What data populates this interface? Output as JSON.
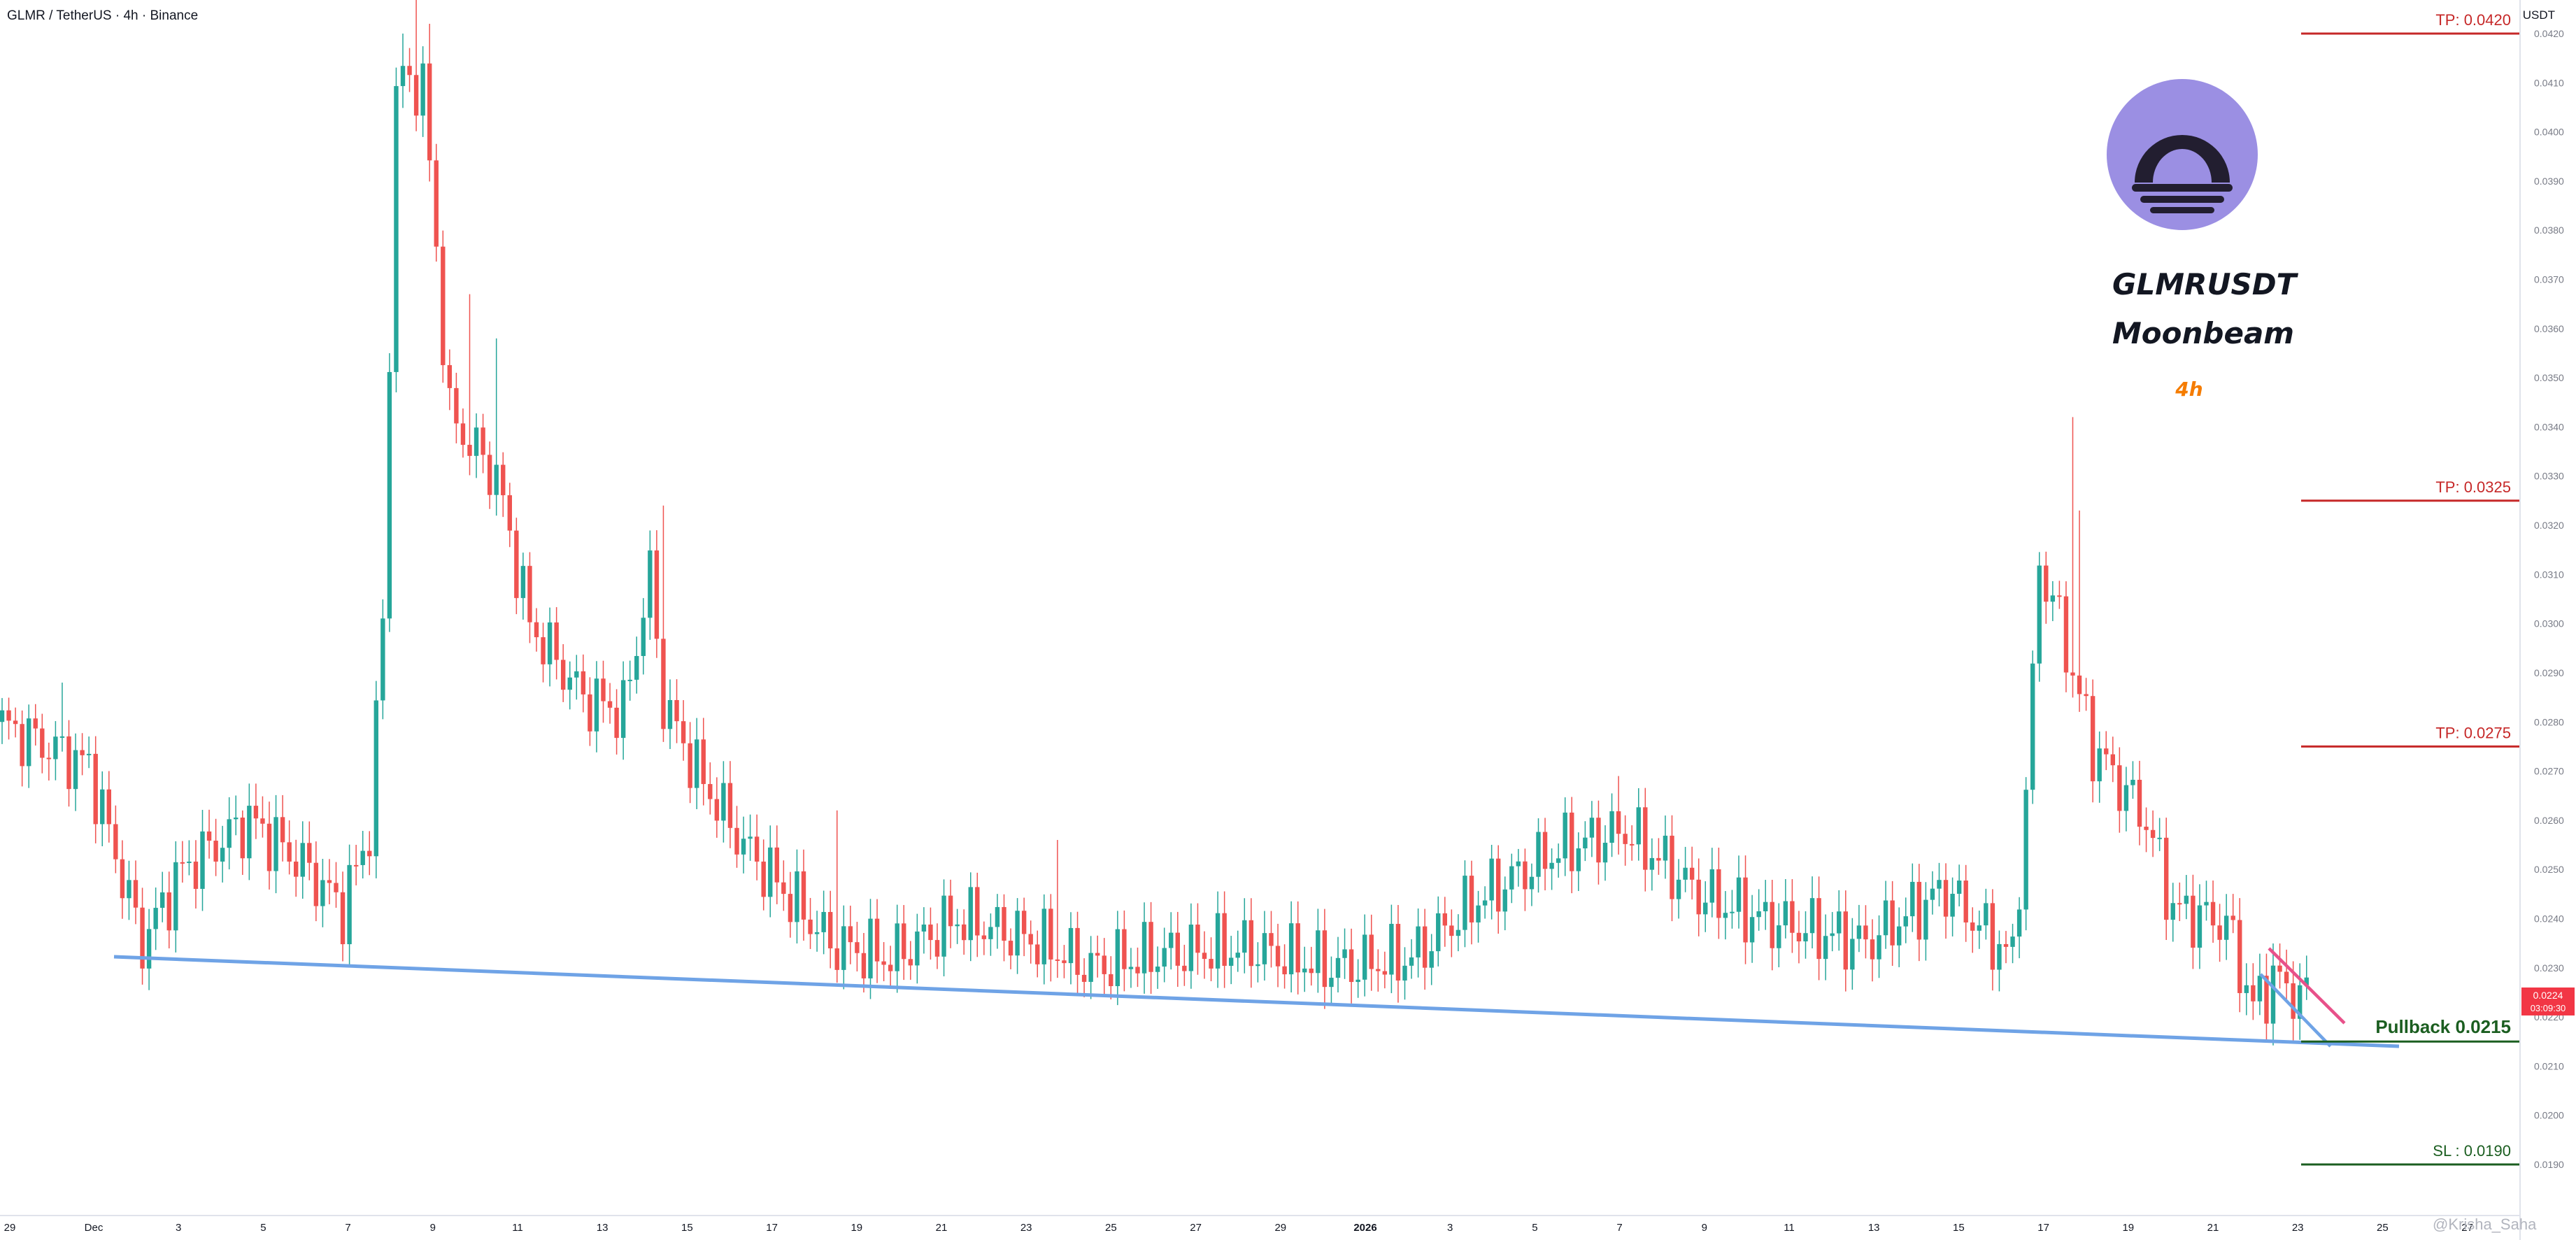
{
  "header": {
    "symbol": "GLMR / TetherUS · 4h · Binance",
    "currency": "USDT"
  },
  "overlay": {
    "pair": "GLMRUSDT",
    "project": "Moonbeam",
    "timeframe": "4h"
  },
  "watermark": "@Krisha_Saha",
  "colors": {
    "up": "#26a69a",
    "down": "#ef5350",
    "trendline": "#6fa3e6",
    "wedge": "#e8518a",
    "tp": "#c62828",
    "sl": "#1b5e20",
    "logo_bg": "#9b8fe3",
    "logo_ring": "#221e30",
    "timeframe": "#f57c00"
  },
  "chart_data": {
    "type": "candlestick",
    "ylim": [
      0.0183,
      0.0425
    ],
    "y_ticks": [
      "0.0420",
      "0.0410",
      "0.0400",
      "0.0390",
      "0.0380",
      "0.0370",
      "0.0360",
      "0.0350",
      "0.0340",
      "0.0330",
      "0.0320",
      "0.0310",
      "0.0300",
      "0.0290",
      "0.0280",
      "0.0270",
      "0.0260",
      "0.0250",
      "0.0240",
      "0.0230",
      "0.0220",
      "0.0210",
      "0.0200",
      "0.0190"
    ],
    "x_ticks": [
      "29",
      "Dec",
      "3",
      "5",
      "7",
      "9",
      "11",
      "13",
      "15",
      "17",
      "19",
      "21",
      "23",
      "25",
      "27",
      "29",
      "2026",
      "3",
      "5",
      "7",
      "9",
      "11",
      "13",
      "15",
      "17",
      "19",
      "21",
      "23",
      "25",
      "27"
    ],
    "last_price": "0.0224",
    "countdown": "03:09:30",
    "levels": [
      {
        "label": "TP: 0.0420",
        "value": 0.042,
        "kind": "tp"
      },
      {
        "label": "TP: 0.0325",
        "value": 0.0325,
        "kind": "tp"
      },
      {
        "label": "TP: 0.0275",
        "value": 0.0275,
        "kind": "tp"
      },
      {
        "label": "Pullback 0.0215",
        "value": 0.0215,
        "kind": "pullback"
      },
      {
        "label": "SL : 0.0190",
        "value": 0.019,
        "kind": "sl"
      }
    ],
    "anchors": [
      [
        0,
        0.028
      ],
      [
        14,
        0.0271
      ],
      [
        22,
        0.0235
      ],
      [
        28,
        0.025
      ],
      [
        38,
        0.026
      ],
      [
        46,
        0.0251
      ],
      [
        52,
        0.0242
      ],
      [
        56,
        0.0258
      ],
      [
        58,
        0.03
      ],
      [
        60,
        0.041
      ],
      [
        64,
        0.041
      ],
      [
        68,
        0.0342
      ],
      [
        75,
        0.033
      ],
      [
        80,
        0.03
      ],
      [
        88,
        0.0285
      ],
      [
        94,
        0.0282
      ],
      [
        98,
        0.031
      ],
      [
        100,
        0.0284
      ],
      [
        105,
        0.027
      ],
      [
        112,
        0.0255
      ],
      [
        125,
        0.0235
      ],
      [
        134,
        0.0232
      ],
      [
        144,
        0.024
      ],
      [
        155,
        0.0236
      ],
      [
        164,
        0.023
      ],
      [
        175,
        0.0233
      ],
      [
        188,
        0.0234
      ],
      [
        200,
        0.023
      ],
      [
        212,
        0.0232
      ],
      [
        222,
        0.0244
      ],
      [
        234,
        0.0254
      ],
      [
        244,
        0.0258
      ],
      [
        255,
        0.0245
      ],
      [
        264,
        0.024
      ],
      [
        280,
        0.0235
      ],
      [
        292,
        0.0246
      ],
      [
        298,
        0.0237
      ],
      [
        302,
        0.0232
      ],
      [
        304,
        0.0265
      ],
      [
        306,
        0.0312
      ],
      [
        308,
        0.0305
      ],
      [
        314,
        0.0275
      ],
      [
        322,
        0.026
      ],
      [
        326,
        0.0242
      ],
      [
        334,
        0.0239
      ],
      [
        338,
        0.0222
      ],
      [
        341,
        0.0228
      ],
      [
        345,
        0.0224
      ]
    ],
    "spikes": [
      [
        9,
        0.0288
      ],
      [
        36,
        0.0262
      ],
      [
        60,
        0.042
      ],
      [
        62,
        0.0432
      ],
      [
        64,
        0.0422
      ],
      [
        70,
        0.0367
      ],
      [
        74,
        0.0358
      ],
      [
        99,
        0.0324
      ],
      [
        125,
        0.0262
      ],
      [
        158,
        0.0256
      ],
      [
        242,
        0.0269
      ],
      [
        310,
        0.0342
      ],
      [
        311,
        0.0323
      ],
      [
        339,
        0.0215
      ]
    ]
  }
}
